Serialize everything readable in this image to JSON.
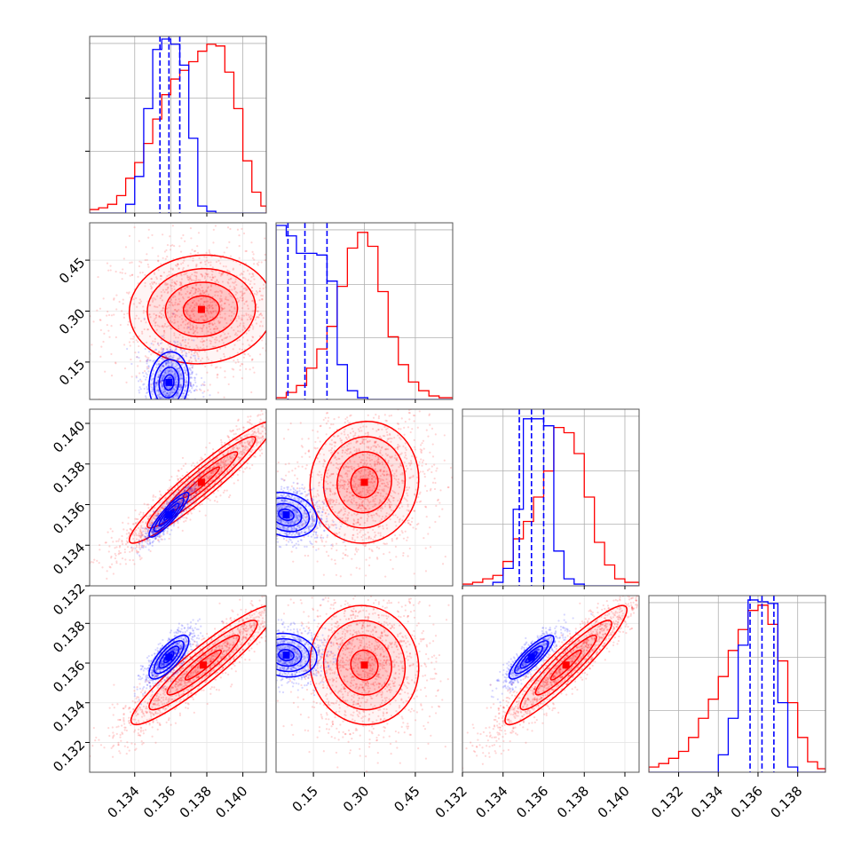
{
  "chart_data": {
    "type": "corner",
    "title": "",
    "series": [
      {
        "name": "",
        "color": "#0000ff"
      },
      {
        "name": "",
        "color": "#ff0000"
      }
    ],
    "dimensions": [
      {
        "range": [
          0.1315,
          0.1413
        ],
        "ticks": [
          0.134,
          0.136,
          0.138,
          0.14
        ],
        "tick_labels": [
          "0.134",
          "0.136",
          "0.138",
          "0.140"
        ]
      },
      {
        "range": [
          0.04,
          0.56
        ],
        "ticks": [
          0.15,
          0.3,
          0.45
        ],
        "tick_labels": [
          "0.15",
          "0.30",
          "0.45"
        ]
      },
      {
        "range": [
          0.132,
          0.1407
        ],
        "ticks": [
          0.132,
          0.134,
          0.136,
          0.138,
          0.14
        ],
        "tick_labels": [
          "0.132",
          "0.134",
          "0.136",
          "0.138",
          "0.140"
        ]
      },
      {
        "range": [
          0.1305,
          0.1394
        ],
        "ticks": [
          0.132,
          0.134,
          0.136,
          0.138
        ],
        "tick_labels": [
          "0.132",
          "0.134",
          "0.136",
          "0.138"
        ]
      }
    ],
    "histograms": [
      {
        "dim": 0,
        "bins": [
          0.1315,
          0.132,
          0.1325,
          0.133,
          0.1335,
          0.134,
          0.1345,
          0.135,
          0.1355,
          0.136,
          0.1365,
          0.137,
          0.1375,
          0.138,
          0.1385,
          0.139,
          0.1395,
          0.14,
          0.1405,
          0.141,
          0.1413
        ],
        "counts": {
          "blue": [
            0,
            0,
            0,
            0,
            0.05,
            0.21,
            0.6,
            0.94,
            1.0,
            0.97,
            0.85,
            0.43,
            0.04,
            0.01,
            0,
            0,
            0,
            0,
            0,
            0
          ],
          "red": [
            0.02,
            0.03,
            0.05,
            0.1,
            0.2,
            0.29,
            0.4,
            0.54,
            0.68,
            0.77,
            0.82,
            0.87,
            0.93,
            0.97,
            0.96,
            0.81,
            0.6,
            0.3,
            0.12,
            0.04
          ]
        },
        "quantiles": [
          0.1354,
          0.1359,
          0.1365
        ]
      },
      {
        "dim": 1,
        "bins": [
          0.04,
          0.07,
          0.1,
          0.13,
          0.16,
          0.19,
          0.22,
          0.25,
          0.28,
          0.31,
          0.34,
          0.37,
          0.4,
          0.43,
          0.46,
          0.49,
          0.52,
          0.56
        ],
        "counts": {
          "blue": [
            1.0,
            0.94,
            0.84,
            0.84,
            0.83,
            0.68,
            0.2,
            0.05,
            0.01,
            0,
            0,
            0,
            0,
            0,
            0,
            0,
            0
          ],
          "red": [
            0.01,
            0.04,
            0.08,
            0.18,
            0.29,
            0.42,
            0.65,
            0.87,
            0.96,
            0.88,
            0.62,
            0.36,
            0.2,
            0.1,
            0.05,
            0.02,
            0.01
          ]
        },
        "quantiles": [
          0.075,
          0.125,
          0.19
        ]
      },
      {
        "dim": 2,
        "bins": [
          0.132,
          0.1325,
          0.133,
          0.1335,
          0.134,
          0.1345,
          0.135,
          0.1355,
          0.136,
          0.1365,
          0.137,
          0.1375,
          0.138,
          0.1385,
          0.139,
          0.1395,
          0.14,
          0.1407
        ],
        "counts": {
          "blue": [
            0,
            0,
            0,
            0.02,
            0.1,
            0.44,
            0.96,
            0.96,
            0.92,
            0.2,
            0.04,
            0.01,
            0,
            0,
            0,
            0,
            0
          ],
          "red": [
            0.01,
            0.02,
            0.04,
            0.06,
            0.14,
            0.27,
            0.37,
            0.51,
            0.66,
            0.91,
            0.88,
            0.76,
            0.51,
            0.25,
            0.12,
            0.04,
            0.02
          ]
        },
        "quantiles": [
          0.1348,
          0.1354,
          0.136
        ]
      },
      {
        "dim": 3,
        "bins": [
          0.1305,
          0.131,
          0.1315,
          0.132,
          0.1325,
          0.133,
          0.1335,
          0.134,
          0.1345,
          0.135,
          0.1355,
          0.136,
          0.1365,
          0.137,
          0.1375,
          0.138,
          0.1385,
          0.139,
          0.1394
        ],
        "counts": {
          "blue": [
            0,
            0,
            0,
            0,
            0,
            0,
            0,
            0.1,
            0.31,
            0.73,
            0.99,
            0.98,
            0.97,
            0.4,
            0.03,
            0,
            0,
            0
          ],
          "red": [
            0.03,
            0.05,
            0.08,
            0.12,
            0.2,
            0.31,
            0.42,
            0.55,
            0.7,
            0.82,
            0.93,
            0.96,
            0.85,
            0.64,
            0.4,
            0.2,
            0.06,
            0.02
          ]
        },
        "quantiles": [
          0.1356,
          0.1362,
          0.1368
        ]
      }
    ],
    "pairs": [
      {
        "xdim": 0,
        "ydim": 1,
        "blue": {
          "center": [
            0.1359,
            0.09
          ],
          "sigma": [
            0.00055,
            0.045
          ],
          "rho": 0.1,
          "fill_opacity": 0.5
        },
        "red": {
          "center": [
            0.1377,
            0.305
          ],
          "sigma": [
            0.002,
            0.08
          ],
          "rho": 0.05,
          "fill_opacity": 0.45
        }
      },
      {
        "xdim": 0,
        "ydim": 2,
        "blue": {
          "center": [
            0.1359,
            0.1355
          ],
          "sigma": [
            0.00055,
            0.00055
          ],
          "rho": 0.9,
          "fill_opacity": 0.3
        },
        "red": {
          "center": [
            0.1377,
            0.1371
          ],
          "sigma": [
            0.002,
            0.0015
          ],
          "rho": 0.95,
          "fill_opacity": 0.45
        }
      },
      {
        "xdim": 1,
        "ydim": 2,
        "blue": {
          "center": [
            0.07,
            0.1355
          ],
          "sigma": [
            0.045,
            0.00055
          ],
          "rho": -0.2,
          "fill_opacity": 0.5
        },
        "red": {
          "center": [
            0.3,
            0.1371
          ],
          "sigma": [
            0.08,
            0.0015
          ],
          "rho": 0.05,
          "fill_opacity": 0.45
        }
      },
      {
        "xdim": 0,
        "ydim": 3,
        "blue": {
          "center": [
            0.1359,
            0.1363
          ],
          "sigma": [
            0.00055,
            0.00055
          ],
          "rho": 0.75,
          "fill_opacity": 0.5
        },
        "red": {
          "center": [
            0.1378,
            0.1359
          ],
          "sigma": [
            0.002,
            0.0015
          ],
          "rho": 0.93,
          "fill_opacity": 0.45
        }
      },
      {
        "xdim": 1,
        "ydim": 3,
        "blue": {
          "center": [
            0.07,
            0.1364
          ],
          "sigma": [
            0.045,
            0.00055
          ],
          "rho": -0.1,
          "fill_opacity": 0.5
        },
        "red": {
          "center": [
            0.3,
            0.1359
          ],
          "sigma": [
            0.08,
            0.0015
          ],
          "rho": -0.05,
          "fill_opacity": 0.45
        }
      },
      {
        "xdim": 2,
        "ydim": 3,
        "blue": {
          "center": [
            0.1354,
            0.1363
          ],
          "sigma": [
            0.00055,
            0.00055
          ],
          "rho": 0.85,
          "fill_opacity": 0.5
        },
        "red": {
          "center": [
            0.1371,
            0.1359
          ],
          "sigma": [
            0.0015,
            0.0015
          ],
          "rho": 0.93,
          "fill_opacity": 0.45
        }
      }
    ],
    "grid": true,
    "legend": "none"
  }
}
